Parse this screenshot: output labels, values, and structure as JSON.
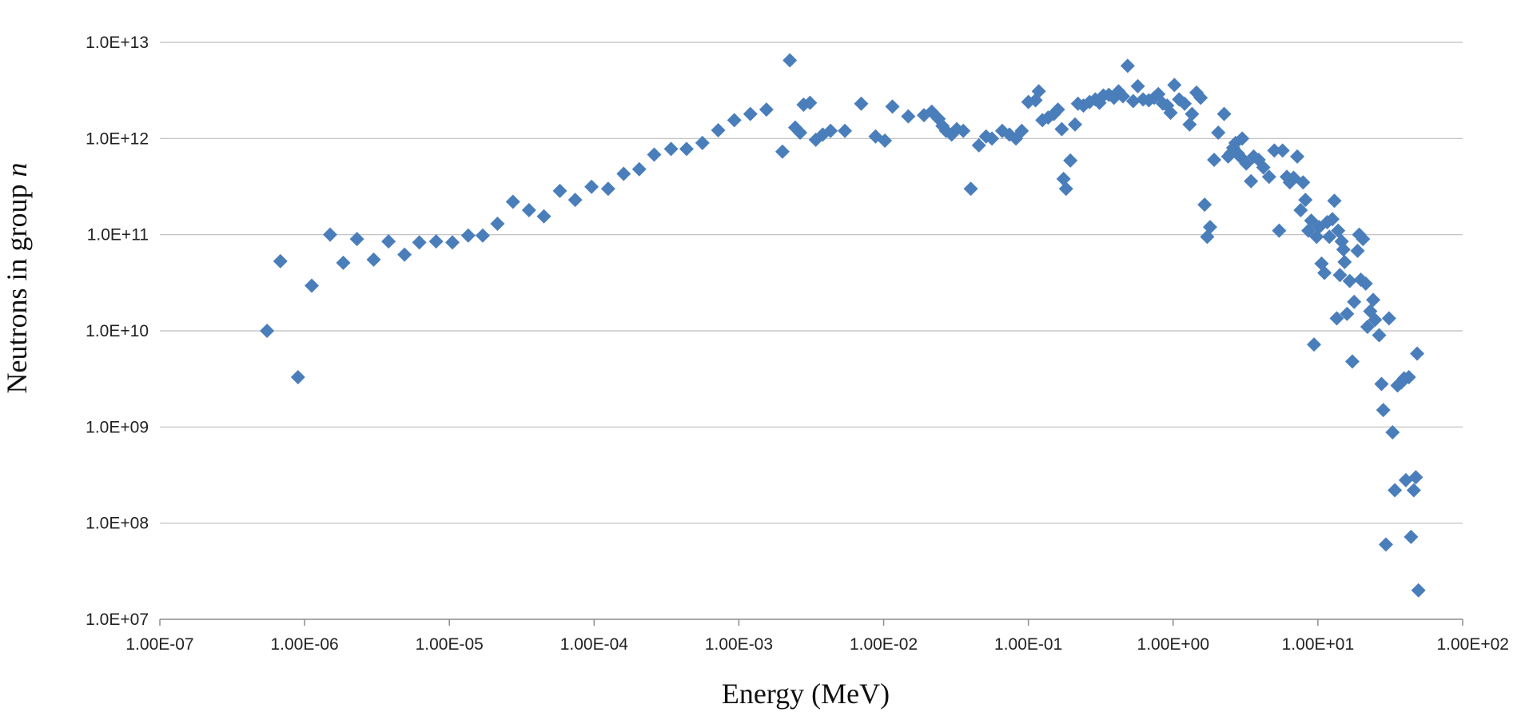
{
  "chart_data": {
    "type": "scatter",
    "title": "",
    "xlabel": "Energy (MeV)",
    "ylabel_main": "Neutrons in group ",
    "ylabel_var": "n",
    "x_scale": "log",
    "y_scale": "log",
    "xlim": [
      1e-07,
      100
    ],
    "ylim": [
      10000000.0,
      10000000000000.0
    ],
    "x_ticks": [
      1e-07,
      1e-06,
      1e-05,
      0.0001,
      0.001,
      0.01,
      0.1,
      1,
      10,
      100
    ],
    "x_tick_labels": [
      "1.00E-07",
      "1.00E-06",
      "1.00E-05",
      "1.00E-04",
      "1.00E-03",
      "1.00E-02",
      "1.00E-01",
      "1.00E+00",
      "1.00E+01",
      "1.00E+02"
    ],
    "y_ticks": [
      10000000.0,
      100000000.0,
      1000000000.0,
      10000000000.0,
      100000000000.0,
      1000000000000.0,
      10000000000000.0
    ],
    "y_tick_labels": [
      "1.0E+07",
      "1.0E+08",
      "1.0E+09",
      "1.0E+10",
      "1.0E+11",
      "1.0E+12",
      "1.0E+13"
    ],
    "grid": "horizontal",
    "legend": "none",
    "marker": "diamond",
    "marker_color": "#4a7ebb",
    "series": [
      {
        "points": [
          [
            5.5e-07,
            10000000000.0
          ],
          [
            6.8e-07,
            53000000000.0
          ],
          [
            9e-07,
            3300000000.0
          ],
          [
            1.12e-06,
            29500000000.0
          ],
          [
            1.5e-06,
            100000000000.0
          ],
          [
            1.85e-06,
            51000000000.0
          ],
          [
            2.3e-06,
            90000000000.0
          ],
          [
            3e-06,
            55000000000.0
          ],
          [
            3.8e-06,
            85000000000.0
          ],
          [
            4.9e-06,
            62000000000.0
          ],
          [
            6.2e-06,
            83000000000.0
          ],
          [
            8.1e-06,
            85000000000.0
          ],
          [
            1.05e-05,
            83000000000.0
          ],
          [
            1.35e-05,
            98000000000.0
          ],
          [
            1.7e-05,
            98000000000.0
          ],
          [
            2.15e-05,
            130000000000.0
          ],
          [
            2.75e-05,
            220000000000.0
          ],
          [
            3.55e-05,
            180000000000.0
          ],
          [
            4.5e-05,
            155000000000.0
          ],
          [
            5.8e-05,
            285000000000.0
          ],
          [
            7.4e-05,
            230000000000.0
          ],
          [
            9.6e-05,
            315000000000.0
          ],
          [
            0.000125,
            300000000000.0
          ],
          [
            0.00016,
            430000000000.0
          ],
          [
            0.000205,
            480000000000.0
          ],
          [
            0.00026,
            680000000000.0
          ],
          [
            0.00034,
            780000000000.0
          ],
          [
            0.000435,
            780000000000.0
          ],
          [
            0.00056,
            900000000000.0
          ],
          [
            0.00072,
            1220000000000.0
          ],
          [
            0.00093,
            1550000000000.0
          ],
          [
            0.0012,
            1800000000000.0
          ],
          [
            0.00155,
            2000000000000.0
          ],
          [
            0.002,
            730000000000.0
          ],
          [
            0.00225,
            6500000000000.0
          ],
          [
            0.00245,
            1300000000000.0
          ],
          [
            0.00265,
            1150000000000.0
          ],
          [
            0.0028,
            2250000000000.0
          ],
          [
            0.0031,
            2350000000000.0
          ],
          [
            0.0034,
            970000000000.0
          ],
          [
            0.0038,
            1100000000000.0
          ],
          [
            0.0043,
            1200000000000.0
          ],
          [
            0.0054,
            1200000000000.0
          ],
          [
            0.007,
            2300000000000.0
          ],
          [
            0.0088,
            1050000000000.0
          ],
          [
            0.0102,
            950000000000.0
          ],
          [
            0.0115,
            2150000000000.0
          ],
          [
            0.0148,
            1700000000000.0
          ],
          [
            0.019,
            1750000000000.0
          ],
          [
            0.0215,
            1900000000000.0
          ],
          [
            0.024,
            1600000000000.0
          ],
          [
            0.0255,
            1350000000000.0
          ],
          [
            0.027,
            1200000000000.0
          ],
          [
            0.0295,
            1100000000000.0
          ],
          [
            0.032,
            1250000000000.0
          ],
          [
            0.0355,
            1200000000000.0
          ],
          [
            0.04,
            300000000000.0
          ],
          [
            0.0455,
            850000000000.0
          ],
          [
            0.051,
            1050000000000.0
          ],
          [
            0.056,
            1000000000000.0
          ],
          [
            0.066,
            1200000000000.0
          ],
          [
            0.074,
            1100000000000.0
          ],
          [
            0.082,
            1000000000000.0
          ],
          [
            0.09,
            1200000000000.0
          ],
          [
            0.1,
            2400000000000.0
          ],
          [
            0.112,
            2500000000000.0
          ],
          [
            0.118,
            3100000000000.0
          ],
          [
            0.125,
            1550000000000.0
          ],
          [
            0.137,
            1650000000000.0
          ],
          [
            0.15,
            1800000000000.0
          ],
          [
            0.16,
            2000000000000.0
          ],
          [
            0.17,
            1250000000000.0
          ],
          [
            0.175,
            380000000000.0
          ],
          [
            0.182,
            300000000000.0
          ],
          [
            0.195,
            590000000000.0
          ],
          [
            0.21,
            1400000000000.0
          ],
          [
            0.22,
            2300000000000.0
          ],
          [
            0.24,
            2200000000000.0
          ],
          [
            0.265,
            2400000000000.0
          ],
          [
            0.29,
            2550000000000.0
          ],
          [
            0.31,
            2350000000000.0
          ],
          [
            0.33,
            2800000000000.0
          ],
          [
            0.36,
            2850000000000.0
          ],
          [
            0.39,
            2650000000000.0
          ],
          [
            0.42,
            3100000000000.0
          ],
          [
            0.45,
            2750000000000.0
          ],
          [
            0.485,
            5700000000000.0
          ],
          [
            0.53,
            2450000000000.0
          ],
          [
            0.57,
            3500000000000.0
          ],
          [
            0.62,
            2550000000000.0
          ],
          [
            0.68,
            2500000000000.0
          ],
          [
            0.74,
            2650000000000.0
          ],
          [
            0.79,
            2900000000000.0
          ],
          [
            0.85,
            2300000000000.0
          ],
          [
            0.91,
            2200000000000.0
          ],
          [
            0.96,
            1850000000000.0
          ],
          [
            1.02,
            3600000000000.0
          ],
          [
            1.1,
            2550000000000.0
          ],
          [
            1.2,
            2300000000000.0
          ],
          [
            1.3,
            1400000000000.0
          ],
          [
            1.35,
            1800000000000.0
          ],
          [
            1.45,
            3000000000000.0
          ],
          [
            1.55,
            2650000000000.0
          ],
          [
            1.65,
            205000000000.0
          ],
          [
            1.72,
            95000000000.0
          ],
          [
            1.8,
            120000000000.0
          ],
          [
            1.92,
            600000000000.0
          ],
          [
            2.05,
            1150000000000.0
          ],
          [
            2.25,
            1800000000000.0
          ],
          [
            2.4,
            650000000000.0
          ],
          [
            2.5,
            700000000000.0
          ],
          [
            2.6,
            800000000000.0
          ],
          [
            2.7,
            900000000000.0
          ],
          [
            2.8,
            700000000000.0
          ],
          [
            2.9,
            650000000000.0
          ],
          [
            3.0,
            1000000000000.0
          ],
          [
            3.2,
            550000000000.0
          ],
          [
            3.45,
            360000000000.0
          ],
          [
            3.6,
            650000000000.0
          ],
          [
            3.9,
            600000000000.0
          ],
          [
            4.2,
            500000000000.0
          ],
          [
            4.6,
            400000000000.0
          ],
          [
            5.0,
            750000000000.0
          ],
          [
            5.4,
            110000000000.0
          ],
          [
            5.7,
            750000000000.0
          ],
          [
            6.1,
            400000000000.0
          ],
          [
            6.4,
            350000000000.0
          ],
          [
            6.8,
            390000000000.0
          ],
          [
            7.2,
            650000000000.0
          ],
          [
            7.6,
            180000000000.0
          ],
          [
            7.9,
            350000000000.0
          ],
          [
            8.2,
            230000000000.0
          ],
          [
            8.6,
            110000000000.0
          ],
          [
            9.0,
            140000000000.0
          ],
          [
            9.4,
            7200000000.0
          ],
          [
            9.8,
            95000000000.0
          ],
          [
            10.2,
            120000000000.0
          ],
          [
            10.6,
            50000000000.0
          ],
          [
            11.1,
            40000000000.0
          ],
          [
            11.6,
            135000000000.0
          ],
          [
            12.0,
            95000000000.0
          ],
          [
            12.6,
            145000000000.0
          ],
          [
            13.0,
            225000000000.0
          ],
          [
            13.5,
            13500000000.0
          ],
          [
            13.8,
            110000000000.0
          ],
          [
            14.2,
            38000000000.0
          ],
          [
            14.6,
            85000000000.0
          ],
          [
            15.0,
            70000000000.0
          ],
          [
            15.3,
            52000000000.0
          ],
          [
            15.9,
            15000000000.0
          ],
          [
            16.6,
            33000000000.0
          ],
          [
            17.3,
            4800000000.0
          ],
          [
            17.8,
            20000000000.0
          ],
          [
            18.8,
            68000000000.0
          ],
          [
            19.3,
            100000000000.0
          ],
          [
            19.8,
            34000000000.0
          ],
          [
            20.5,
            90000000000.0
          ],
          [
            21.4,
            31000000000.0
          ],
          [
            22.0,
            11000000000.0
          ],
          [
            23.0,
            16000000000.0
          ],
          [
            24.1,
            21000000000.0
          ],
          [
            24.8,
            13000000000.0
          ],
          [
            26.5,
            9000000000.0
          ],
          [
            27.5,
            2800000000.0
          ],
          [
            28.3,
            1500000000.0
          ],
          [
            29.5,
            60000000.0
          ],
          [
            31.0,
            13500000000.0
          ],
          [
            32.8,
            880000000.0
          ],
          [
            34.0,
            220000000.0
          ],
          [
            35.5,
            2700000000.0
          ],
          [
            37.6,
            2900000000.0
          ],
          [
            39.4,
            3200000000.0
          ],
          [
            40.5,
            280000000.0
          ],
          [
            42.5,
            3300000000.0
          ],
          [
            44.0,
            72000000.0
          ],
          [
            46.0,
            220000000.0
          ],
          [
            47.5,
            300000000.0
          ],
          [
            48.5,
            5800000000.0
          ],
          [
            49.5,
            20000000.0
          ]
        ]
      }
    ]
  }
}
